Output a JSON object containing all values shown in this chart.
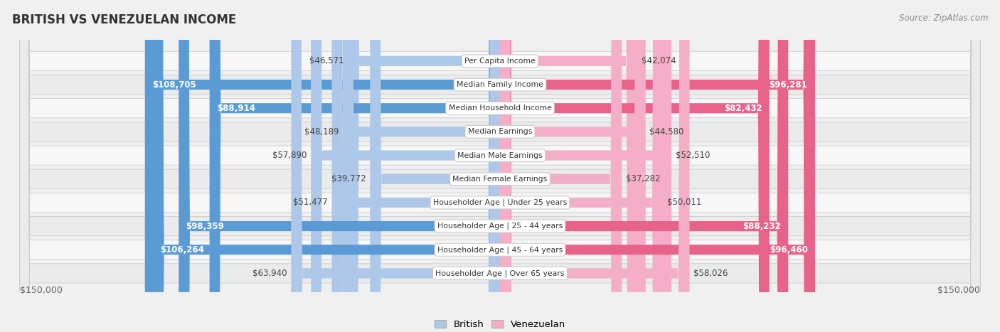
{
  "title": "BRITISH VS VENEZUELAN INCOME",
  "source": "Source: ZipAtlas.com",
  "categories": [
    "Per Capita Income",
    "Median Family Income",
    "Median Household Income",
    "Median Earnings",
    "Median Male Earnings",
    "Median Female Earnings",
    "Householder Age | Under 25 years",
    "Householder Age | 25 - 44 years",
    "Householder Age | 45 - 64 years",
    "Householder Age | Over 65 years"
  ],
  "british_values": [
    46571,
    108705,
    88914,
    48189,
    57890,
    39772,
    51477,
    98359,
    106264,
    63940
  ],
  "venezuelan_values": [
    42074,
    96281,
    82432,
    44580,
    52510,
    37282,
    50011,
    88232,
    96460,
    58026
  ],
  "british_labels": [
    "$46,571",
    "$108,705",
    "$88,914",
    "$48,189",
    "$57,890",
    "$39,772",
    "$51,477",
    "$98,359",
    "$106,264",
    "$63,940"
  ],
  "venezuelan_labels": [
    "$42,074",
    "$96,281",
    "$82,432",
    "$44,580",
    "$52,510",
    "$37,282",
    "$50,011",
    "$88,232",
    "$96,460",
    "$58,026"
  ],
  "british_color_light": "#adc8e8",
  "british_color_dark": "#5b9bd5",
  "venezuelan_color_light": "#f4aec8",
  "venezuelan_color_dark": "#e8638a",
  "large_thresh_brit": 70000,
  "large_thresh_ven": 70000,
  "max_value": 150000,
  "axis_label_left": "$150,000",
  "axis_label_right": "$150,000",
  "legend_british": "British",
  "legend_venezuelan": "Venezuelan",
  "bg_color": "#f0f0f0",
  "row_bg_even": "#f7f7f7",
  "row_bg_odd": "#ebebeb"
}
